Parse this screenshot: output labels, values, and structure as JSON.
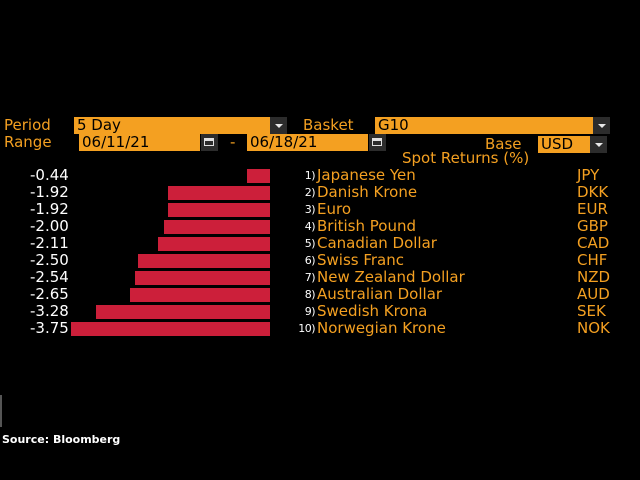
{
  "controls": {
    "period_label": "Period",
    "period_value": "5 Day",
    "basket_label": "Basket",
    "basket_value": "G10",
    "range_label": "Range",
    "range_start": "06/11/21",
    "range_dash": "-",
    "range_end": "06/18/21",
    "base_label": "Base",
    "base_value": "USD"
  },
  "table": {
    "header": "Spot Returns (%)",
    "rows": [
      {
        "value": "-0.44",
        "rank": "1)",
        "name": "Japanese Yen",
        "code": "JPY"
      },
      {
        "value": "-1.92",
        "rank": "2)",
        "name": "Danish Krone",
        "code": "DKK"
      },
      {
        "value": "-1.92",
        "rank": "3)",
        "name": "Euro",
        "code": "EUR"
      },
      {
        "value": "-2.00",
        "rank": "4)",
        "name": "British Pound",
        "code": "GBP"
      },
      {
        "value": "-2.11",
        "rank": "5)",
        "name": "Canadian Dollar",
        "code": "CAD"
      },
      {
        "value": "-2.50",
        "rank": "6)",
        "name": "Swiss Franc",
        "code": "CHF"
      },
      {
        "value": "-2.54",
        "rank": "7)",
        "name": "New Zealand Dollar",
        "code": "NZD"
      },
      {
        "value": "-2.65",
        "rank": "8)",
        "name": "Australian Dollar",
        "code": "AUD"
      },
      {
        "value": "-3.28",
        "rank": "9)",
        "name": "Swedish Krona",
        "code": "SEK"
      },
      {
        "value": "-3.75",
        "rank": "10)",
        "name": "Norwegian Krone",
        "code": "NOK"
      }
    ]
  },
  "chart_data": {
    "type": "bar",
    "categories": [
      "JPY",
      "DKK",
      "EUR",
      "GBP",
      "CAD",
      "CHF",
      "NZD",
      "AUD",
      "SEK",
      "NOK"
    ],
    "values": [
      -0.44,
      -1.92,
      -1.92,
      -2.0,
      -2.11,
      -2.5,
      -2.54,
      -2.65,
      -3.28,
      -3.75
    ]
  },
  "source": "Source: Bloomberg",
  "colors": {
    "accent": "#f4a021",
    "bar": "#cc1f3a",
    "background": "#000000"
  }
}
